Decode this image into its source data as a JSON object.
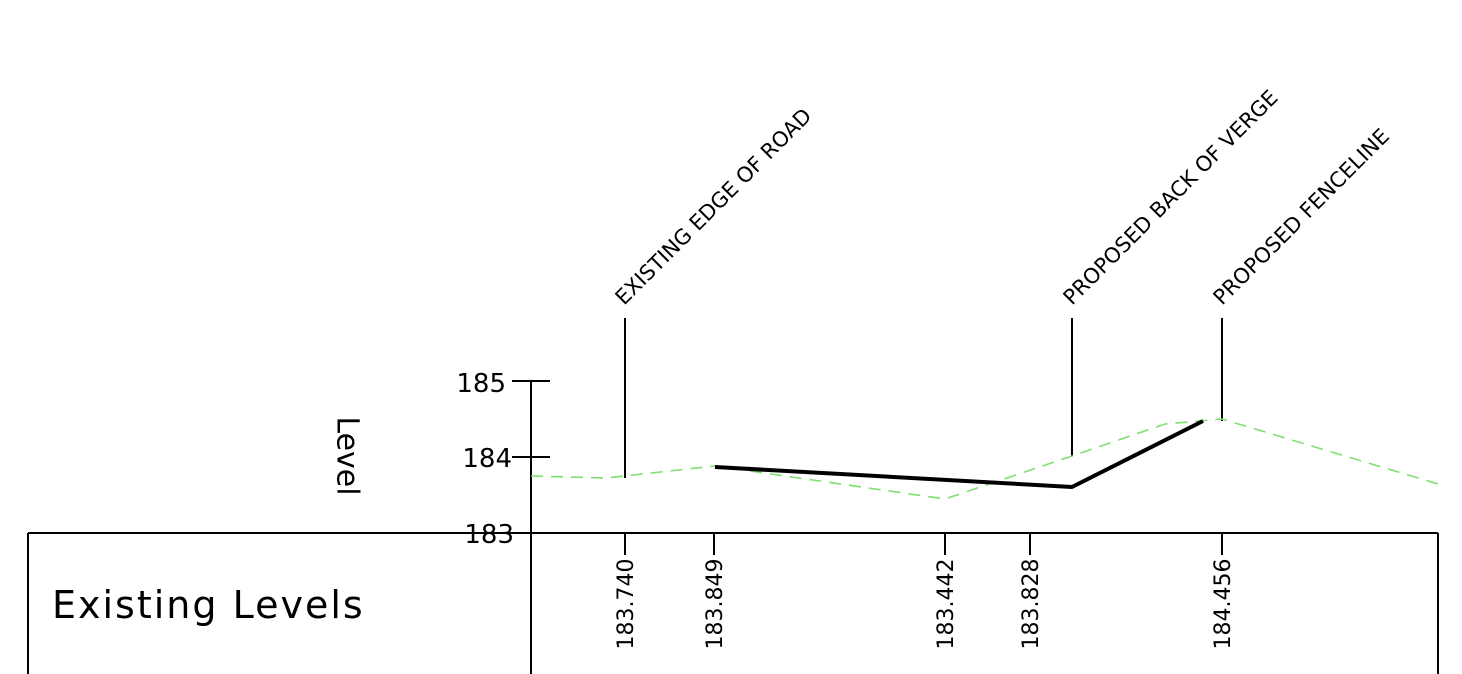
{
  "y_axis": {
    "label": "Level",
    "ticks": [
      "185",
      "184",
      "183"
    ]
  },
  "callouts": [
    {
      "label": "EXISTING EDGE OF ROAD"
    },
    {
      "label": "PROPOSED BACK OF VERGE"
    },
    {
      "label": "PROPOSED FENCELINE"
    }
  ],
  "table": {
    "row_label": "Existing Levels",
    "values": [
      "183.740",
      "183.849",
      "183.442",
      "183.828",
      "184.456"
    ]
  },
  "colors": {
    "existing_line": "#7ee06f",
    "proposed_line": "#000000",
    "linework": "#000000"
  }
}
